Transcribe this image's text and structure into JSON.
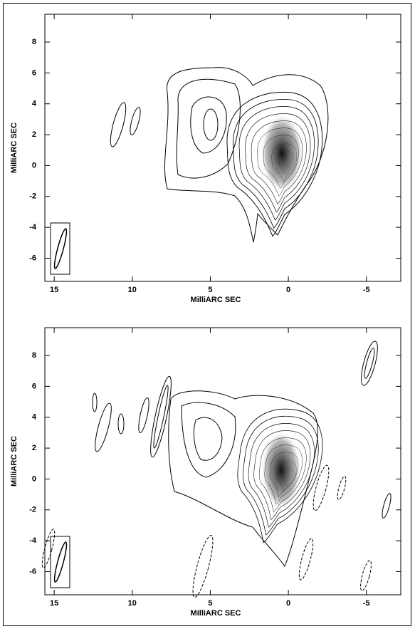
{
  "chart_data": [
    {
      "type": "contour",
      "xlabel": "MilliARC SEC",
      "ylabel": "MilliARC SEC",
      "xlim": [
        15.6,
        -7.2
      ],
      "ylim": [
        -7.5,
        9.8
      ],
      "xticks": [
        15,
        10,
        5,
        0,
        -5
      ],
      "yticks": [
        8,
        6,
        4,
        2,
        0,
        -2,
        -4,
        -6
      ]
    },
    {
      "type": "contour",
      "xlabel": "MilliARC SEC",
      "ylabel": "MilliARC SEC",
      "xlim": [
        15.6,
        -7.2
      ],
      "ylim": [
        -7.5,
        9.8
      ],
      "xticks": [
        15,
        10,
        5,
        0,
        -5
      ],
      "yticks": [
        8,
        6,
        4,
        2,
        0,
        -2,
        -4,
        -6
      ]
    }
  ]
}
